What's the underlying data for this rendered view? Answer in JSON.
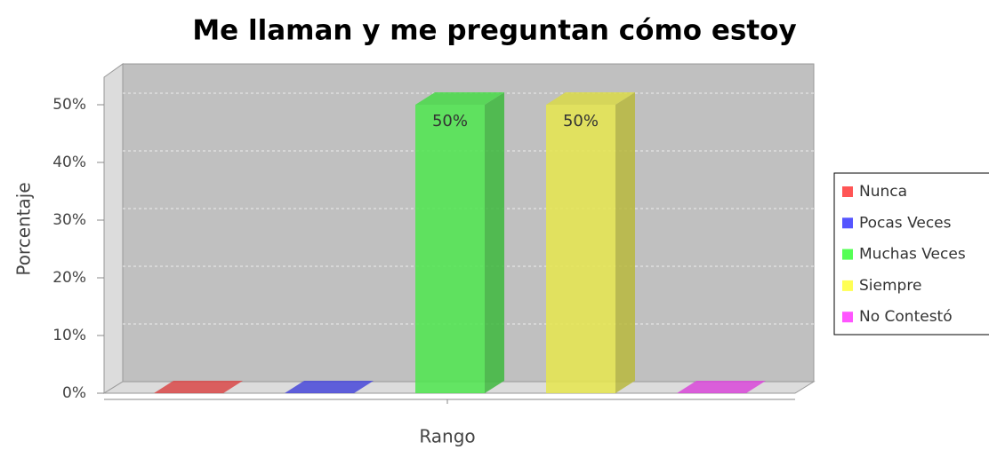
{
  "chart_data": {
    "type": "bar3d",
    "title": "Me llaman y me preguntan cómo estoy",
    "x_label": "Rango",
    "y_label": "Porcentaje",
    "categories": [
      null
    ],
    "series": [
      {
        "name": "Nunca",
        "color": "#ff5555",
        "values": [
          0
        ]
      },
      {
        "name": "Pocas Veces",
        "color": "#5555ff",
        "values": [
          0
        ]
      },
      {
        "name": "Muchas Veces",
        "color": "#55ff55",
        "values": [
          50
        ],
        "value_labels": [
          "50%"
        ]
      },
      {
        "name": "Siempre",
        "color": "#ffff55",
        "values": [
          50
        ],
        "value_labels": [
          "50%"
        ]
      },
      {
        "name": "No Contestó",
        "color": "#ff55ff",
        "values": [
          0
        ]
      }
    ],
    "ylim": [
      0,
      50
    ],
    "yticks": [
      {
        "value": 0,
        "label": "0%"
      },
      {
        "value": 10,
        "label": "10%"
      },
      {
        "value": 20,
        "label": "20%"
      },
      {
        "value": 30,
        "label": "30%"
      },
      {
        "value": 40,
        "label": "40%"
      },
      {
        "value": 50,
        "label": "50%"
      }
    ],
    "grid": true,
    "legend": "right"
  }
}
